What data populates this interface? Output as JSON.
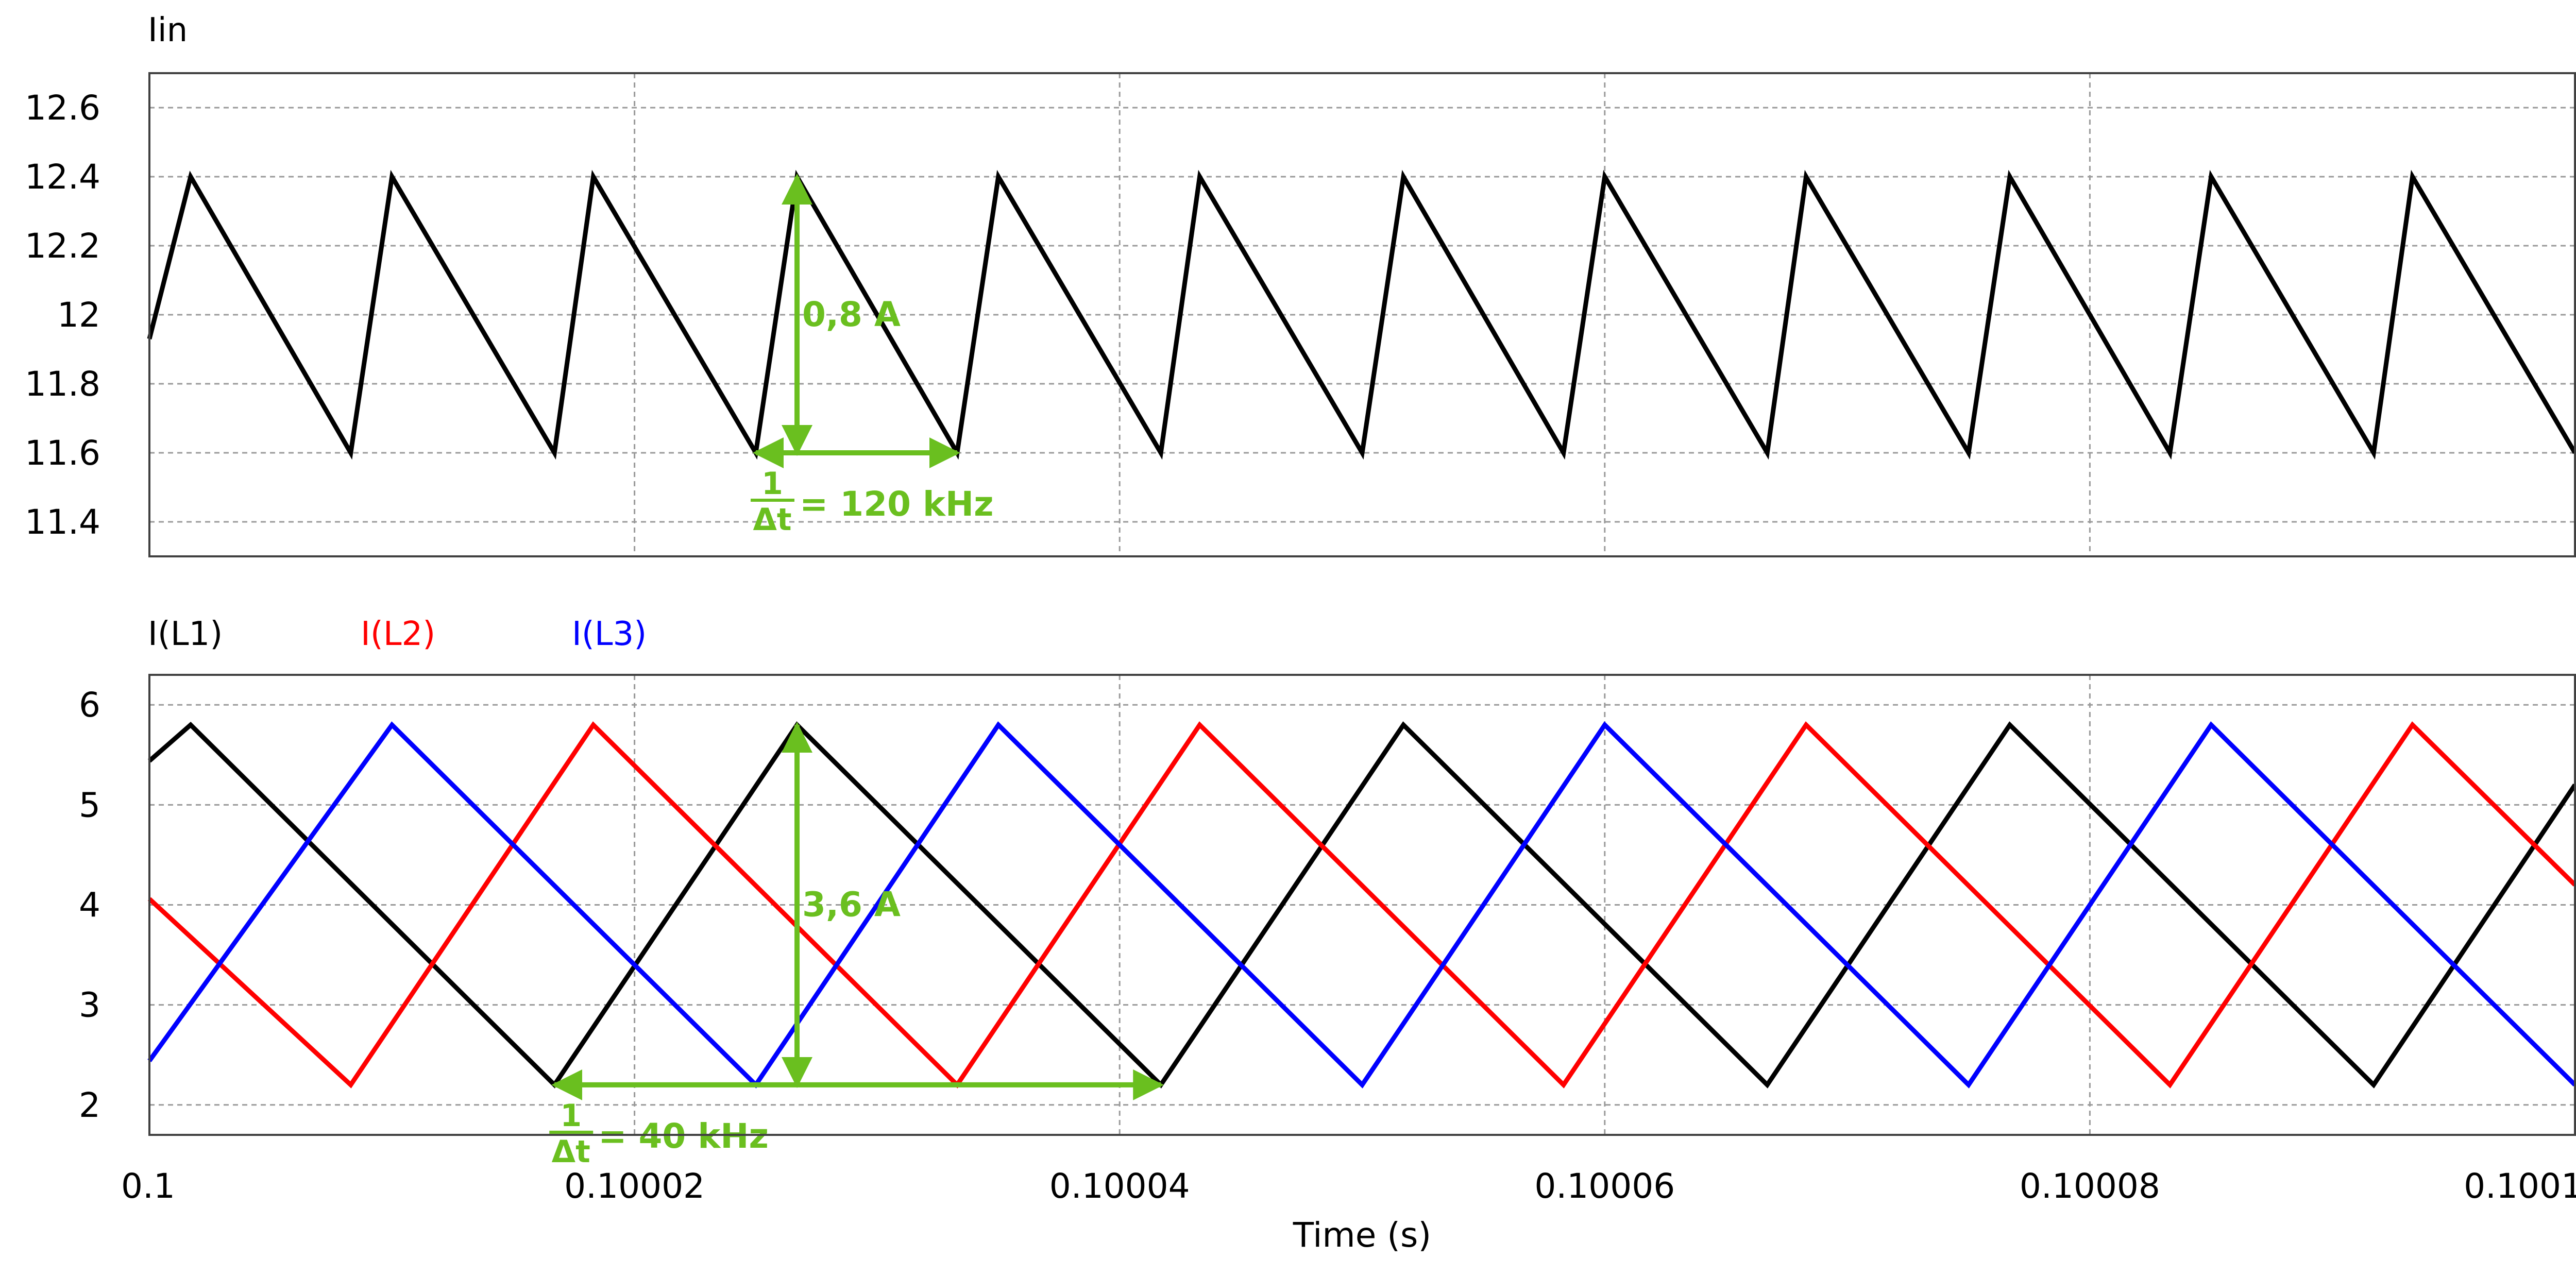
{
  "colors": {
    "background": "#ffffff",
    "frame": "#404040",
    "grid": "#9a9a9a",
    "annotation": "#6abf1f",
    "L1": "#000000",
    "L2": "#ff0000",
    "L3": "#0000ff"
  },
  "chart_data": [
    {
      "type": "line",
      "title": "Iin",
      "xlabel": "",
      "ylabel": "",
      "xlim": [
        0.1,
        0.1001
      ],
      "ylim": [
        11.3,
        12.7
      ],
      "x_ticks": [
        0.1,
        0.10002,
        0.10004,
        0.10006,
        0.10008,
        0.1001
      ],
      "y_ticks": [
        11.4,
        11.6,
        11.8,
        12,
        12.2,
        12.4,
        12.6
      ],
      "y_tick_labels": [
        "11.4",
        "11.6",
        "11.8",
        "12",
        "12.2",
        "12.4",
        "12.6"
      ],
      "grid": true,
      "series": [
        {
          "name": "Iin",
          "color_key": "L1",
          "x": [
            0.1,
            0.1000017,
            0.1000083,
            0.10001,
            0.1000167,
            0.1000183,
            0.100025,
            0.1000267,
            0.1000333,
            0.100035,
            0.1000417,
            0.1000433,
            0.10005,
            0.1000517,
            0.1000583,
            0.10006,
            0.1000667,
            0.1000683,
            0.100075,
            0.1000767,
            0.1000833,
            0.100085,
            0.1000917,
            0.1000933,
            0.1001
          ],
          "y": [
            11.93,
            12.4,
            11.6,
            12.4,
            11.6,
            12.4,
            11.6,
            12.4,
            11.6,
            12.4,
            11.6,
            12.4,
            11.6,
            12.4,
            11.6,
            12.4,
            11.6,
            12.4,
            11.6,
            12.4,
            11.6,
            12.4,
            11.6,
            12.4,
            11.6
          ]
        }
      ],
      "annotations": [
        {
          "text": "0,8 A",
          "kind": "amplitude",
          "x": 0.1000267,
          "y_from": 11.6,
          "y_to": 12.4
        },
        {
          "text": "= 120 kHz",
          "numerator": "1",
          "denominator": "Δt",
          "kind": "period",
          "x_from": 0.100025,
          "x_to": 0.1000333,
          "y": 11.6
        }
      ]
    },
    {
      "type": "line",
      "title": "",
      "xlabel": "Time (s)",
      "ylabel": "",
      "xlim": [
        0.1,
        0.1001
      ],
      "ylim": [
        1.7,
        6.3
      ],
      "x_ticks": [
        0.1,
        0.10002,
        0.10004,
        0.10006,
        0.10008,
        0.1001
      ],
      "x_tick_labels": [
        "0.1",
        "0.10002",
        "0.10004",
        "0.10006",
        "0.10008",
        "0.1001"
      ],
      "y_ticks": [
        2,
        3,
        4,
        5,
        6
      ],
      "y_tick_labels": [
        "2",
        "3",
        "4",
        "5",
        "6"
      ],
      "grid": true,
      "series": [
        {
          "name": "I(L1)",
          "color_key": "L1",
          "x": [
            0.1,
            0.1000017,
            0.1000167,
            0.1000267,
            0.1000417,
            0.1000517,
            0.1000667,
            0.1000767,
            0.1000917,
            0.1001
          ],
          "y": [
            5.44,
            5.8,
            2.2,
            5.8,
            2.2,
            5.8,
            2.2,
            5.8,
            2.2,
            5.2
          ]
        },
        {
          "name": "I(L2)",
          "color_key": "L2",
          "x": [
            0.1,
            0.1000083,
            0.1000183,
            0.1000333,
            0.1000433,
            0.1000583,
            0.1000683,
            0.1000833,
            0.1000933,
            0.1001
          ],
          "y": [
            4.06,
            2.2,
            5.8,
            2.2,
            5.8,
            2.2,
            5.8,
            2.2,
            5.8,
            4.2
          ]
        },
        {
          "name": "I(L3)",
          "color_key": "L3",
          "x": [
            0.1,
            0.10001,
            0.100025,
            0.100035,
            0.10005,
            0.10006,
            0.100075,
            0.100085,
            0.1001
          ],
          "y": [
            2.44,
            5.8,
            2.2,
            5.8,
            2.2,
            5.8,
            2.2,
            5.8,
            2.2
          ]
        }
      ],
      "annotations": [
        {
          "text": "3,6 A",
          "kind": "amplitude",
          "x": 0.1000267,
          "y_from": 2.2,
          "y_to": 5.8
        },
        {
          "text": "= 40 kHz",
          "numerator": "1",
          "denominator": "Δt",
          "kind": "period",
          "x_from": 0.1000167,
          "x_to": 0.1000417,
          "y": 2.2
        }
      ]
    }
  ]
}
